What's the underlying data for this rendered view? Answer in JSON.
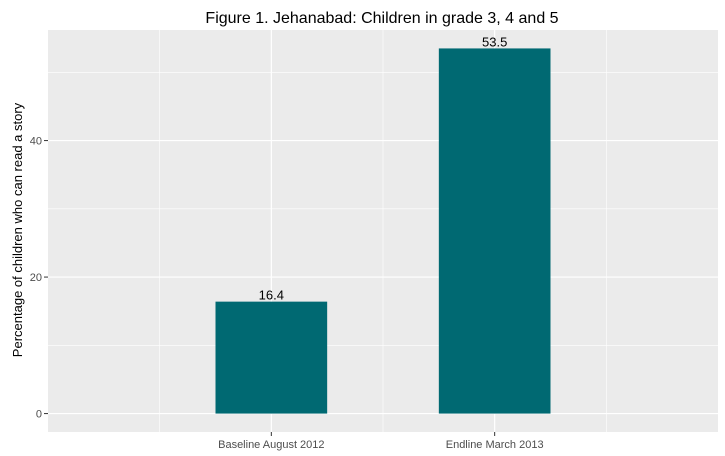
{
  "chart_data": {
    "type": "bar",
    "title": "Figure 1. Jehanabad: Children in grade 3, 4 and 5",
    "xlabel": "",
    "ylabel": "Percentage of children who can read a story",
    "categories": [
      "Baseline August 2012",
      "Endline March 2013"
    ],
    "values": [
      16.4,
      53.5
    ],
    "data_labels": [
      "16.4",
      "53.5"
    ],
    "yticks": [
      0,
      20,
      40
    ],
    "ytick_labels": [
      "0",
      "20",
      "40"
    ],
    "ylim": [
      -2.7,
      56.2
    ],
    "grid": true,
    "bar_color": "#006972",
    "panel_color": "#ebebeb",
    "grid_color": "#ffffff"
  }
}
